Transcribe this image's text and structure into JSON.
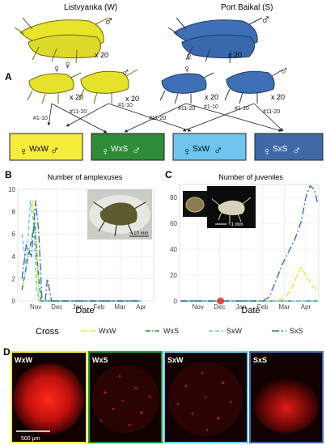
{
  "panel_a": {
    "letter": "A",
    "populations": [
      {
        "label": "Listvyanka (W)",
        "color": "#e6e62a"
      },
      {
        "label": "Port Baikal (S)",
        "color": "#3e6fb8"
      }
    ],
    "count_labels": [
      "x 20",
      "x 20",
      "x 20",
      "x 20",
      "x 20",
      "x 20"
    ],
    "edge_labels": [
      "#1-10",
      "#11-20",
      "#11-20",
      "#1-10",
      "#11-20",
      "#1-10",
      "#1-10",
      "#11-20"
    ],
    "crosses": [
      {
        "label": "WxW",
        "color": "#f5ec3c"
      },
      {
        "label": "WxS",
        "color": "#2e8b3a"
      },
      {
        "label": "SxW",
        "color": "#6ec6ee"
      },
      {
        "label": "SxS",
        "color": "#3f6aa7"
      }
    ],
    "female_symbol": "♀",
    "male_symbol": "♂"
  },
  "panel_b": {
    "letter": "B",
    "scale_label": "~ 10 mm"
  },
  "panel_c": {
    "letter": "C",
    "scale_label": "~1 mm"
  },
  "legend": {
    "title": "Cross",
    "items": [
      {
        "label": "WxW",
        "color": "#f0e33a",
        "dash": "8 3"
      },
      {
        "label": "WxS",
        "color": "#2e8b3a",
        "dash": "6 2 1 2"
      },
      {
        "label": "SxW",
        "color": "#6ec6ee",
        "dash": "5 3"
      },
      {
        "label": "SxS",
        "color": "#3d6fb5",
        "dash": "9 3 2 3"
      }
    ]
  },
  "panel_d": {
    "letter": "D",
    "images": [
      {
        "label": "WxW",
        "border": "#f5ec3c"
      },
      {
        "label": "WxS",
        "border": "#2e8b3a"
      },
      {
        "label": "SxW",
        "border": "#6ec6ee"
      },
      {
        "label": "SxS",
        "border": "#3f6aa7"
      }
    ],
    "scale_label": "500 μm"
  },
  "chart_data": [
    {
      "type": "line",
      "title": "Number of amplexuses",
      "xlabel": "Date",
      "ylabel": "",
      "x_ticks": [
        "Nov",
        "Dec",
        "Jan",
        "Feb",
        "Mar",
        "Apr"
      ],
      "y_ticks": [
        0,
        2,
        4,
        6,
        8,
        10
      ],
      "ylim": [
        0,
        10
      ],
      "grid": true,
      "series": [
        {
          "name": "WxW",
          "x": [
            -0.15,
            0.0,
            0.15,
            0.3,
            0.5,
            1.0,
            2.0,
            3.0,
            4.0,
            5.0
          ],
          "y": [
            9,
            6,
            0,
            0,
            0,
            0,
            0,
            0,
            0,
            0
          ]
        },
        {
          "name": "WxS",
          "x": [
            -0.65,
            -0.45,
            -0.25,
            -0.05,
            0.1,
            0.25,
            0.5,
            1.0,
            2.0,
            3.0,
            4.0,
            5.0
          ],
          "y": [
            1,
            3,
            5,
            7,
            3,
            0,
            0,
            0,
            0,
            0,
            0,
            0
          ]
        },
        {
          "name": "SxW",
          "x": [
            -0.65,
            -0.45,
            -0.25,
            -0.1,
            0.05,
            0.2,
            0.5,
            1.0,
            2.0,
            3.0,
            4.0,
            5.0
          ],
          "y": [
            6,
            3,
            9,
            7,
            1,
            0,
            0,
            0,
            0,
            0,
            0,
            0
          ]
        },
        {
          "name": "SxS",
          "x": [
            -0.65,
            -0.45,
            -0.2,
            0.0,
            0.15,
            0.3,
            0.45,
            0.55,
            0.75,
            1.0,
            2.0,
            3.0,
            4.0,
            5.0
          ],
          "y": [
            2,
            5,
            4,
            9,
            6,
            0,
            0,
            2,
            0,
            0,
            0,
            0,
            0,
            0
          ]
        }
      ]
    },
    {
      "type": "line",
      "title": "Number of juveniles",
      "xlabel": "Date",
      "ylabel": "",
      "x_ticks": [
        "Nov",
        "Dec",
        "Jan",
        "Feb",
        "Mar",
        "Apr"
      ],
      "y_ticks": [
        0,
        20,
        40,
        60,
        80
      ],
      "ylim": [
        0,
        90
      ],
      "grid": true,
      "series": [
        {
          "name": "WxW",
          "x": [
            -0.8,
            3.0,
            3.5,
            4.0,
            4.3,
            4.6,
            4.8,
            5.0,
            5.3,
            5.55
          ],
          "y": [
            0,
            0,
            0,
            2,
            8,
            20,
            26,
            20,
            12,
            8
          ]
        },
        {
          "name": "WxS",
          "x": [
            -0.8,
            5.55
          ],
          "y": [
            0,
            0
          ]
        },
        {
          "name": "SxW",
          "x": [
            -0.8,
            5.55
          ],
          "y": [
            0,
            0
          ]
        },
        {
          "name": "SxS",
          "x": [
            -0.8,
            3.0,
            3.3,
            3.6,
            3.9,
            4.2,
            4.5,
            4.8,
            5.0,
            5.2,
            5.4,
            5.55
          ],
          "y": [
            0,
            0,
            3,
            15,
            28,
            38,
            48,
            62,
            80,
            89,
            86,
            75
          ]
        }
      ],
      "marker": {
        "x": 1.05,
        "y": 0,
        "color": "#e2322a"
      }
    }
  ]
}
